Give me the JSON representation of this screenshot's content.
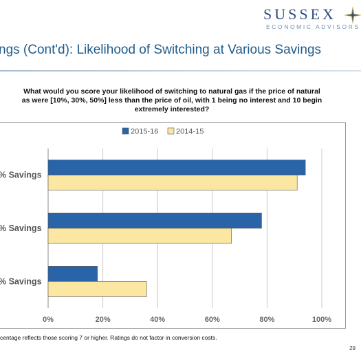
{
  "logo": {
    "word": "SUSSEX",
    "sub": "ECONOMIC ADVISORS",
    "icon": "compass-star-icon",
    "color": "#2a4f7a"
  },
  "slide": {
    "title": "ngs (Cont'd): Likelihood of Switching at Various Savings",
    "question_lines": [
      "What would you score your likelihood of switching to natural gas if the price of natural",
      "as were [10%, 30%, 50%] less than the price of oil, with 1 being no interest and 10 begin",
      "extremely interested?"
    ],
    "footnote": "centage reflects those scoring 7 or higher. Ratings do not factor in conversion costs.",
    "page_number": "29"
  },
  "chart_data": {
    "type": "bar",
    "orientation": "horizontal",
    "categories": [
      "% Savings",
      "% Savings",
      "% Savings"
    ],
    "series": [
      {
        "name": "2015-16",
        "values": [
          0.94,
          0.78,
          0.18
        ],
        "color": "#2a64a8"
      },
      {
        "name": "2014-15",
        "values": [
          0.91,
          0.67,
          0.36
        ],
        "color": "#fbe7a1"
      }
    ],
    "x_ticks": [
      "0%",
      "20%",
      "40%",
      "60%",
      "80%",
      "100%"
    ],
    "xlim": [
      0,
      1
    ],
    "legend_position": "top",
    "grid": true,
    "gridline_color": "#c9c9c9"
  }
}
